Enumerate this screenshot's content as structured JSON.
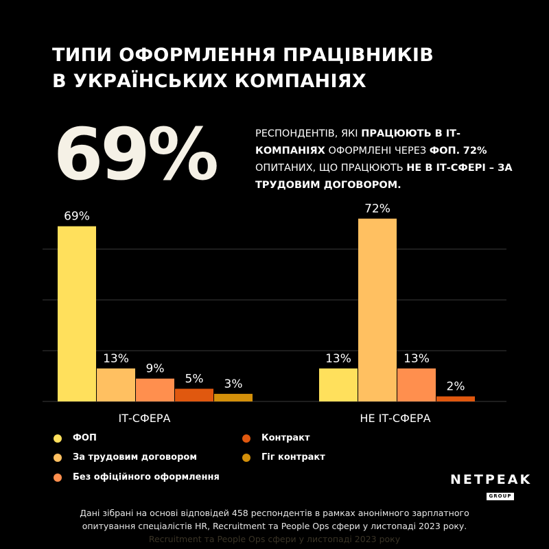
{
  "title": {
    "line1": "ТИПИ ОФОРМЛЕННЯ ПРАЦІВНИКІВ",
    "line2": "В УКРАЇНСЬКИХ КОМПАНІЯХ"
  },
  "headline": {
    "big_value": "69%",
    "desc_1": "РЕСПОНДЕНТІВ, ЯКІ ",
    "desc_2": "ПРАЦЮЮТЬ В ІТ-КОМПАНІЯХ",
    "desc_3": " ОФОРМЛЕНІ ЧЕРЕЗ ",
    "desc_4": "ФОП.",
    "desc_5": "72%",
    "desc_6": " ОПИТАНИХ, ЩО ПРАЦЮЮТЬ ",
    "desc_7": "НЕ В ІТ-СФЕРІ – ЗА ТРУДОВИМ ДОГОВОРОМ."
  },
  "colors": {
    "background": "#000000",
    "fop": "#FFE05C",
    "employment": "#FFC061",
    "unofficial": "#FF8F4E",
    "contract": "#E0580F",
    "gig": "#D4900A"
  },
  "chart_data": {
    "type": "bar",
    "categories": [
      "ІТ-СФЕРА",
      "НЕ ІТ-СФЕРА"
    ],
    "series": [
      {
        "name": "ФОП",
        "values": [
          69,
          13
        ]
      },
      {
        "name": "За трудовим договором",
        "values": [
          13,
          72
        ]
      },
      {
        "name": "Без офіційного оформлення",
        "values": [
          9,
          13
        ]
      },
      {
        "name": "Контракт",
        "values": [
          5,
          2
        ]
      },
      {
        "name": "Гіг контракт",
        "values": [
          3,
          null
        ]
      }
    ],
    "value_suffix": "%",
    "ylim": [
      0,
      80
    ],
    "grid": true,
    "legend_position": "bottom"
  },
  "logo": {
    "name": "NETPEAK",
    "sub": "GROUP"
  },
  "footnote": {
    "line1": "Дані зібрані на основі відповідей 458 респондентів в рамках анонімного зарплатного",
    "line2": "опитування спеціалістів HR, Recruitment та People Ops сфери у листопаді 2023 року.",
    "line3": "Recruitment та People Ops сфери у листопаді 2023 року"
  }
}
